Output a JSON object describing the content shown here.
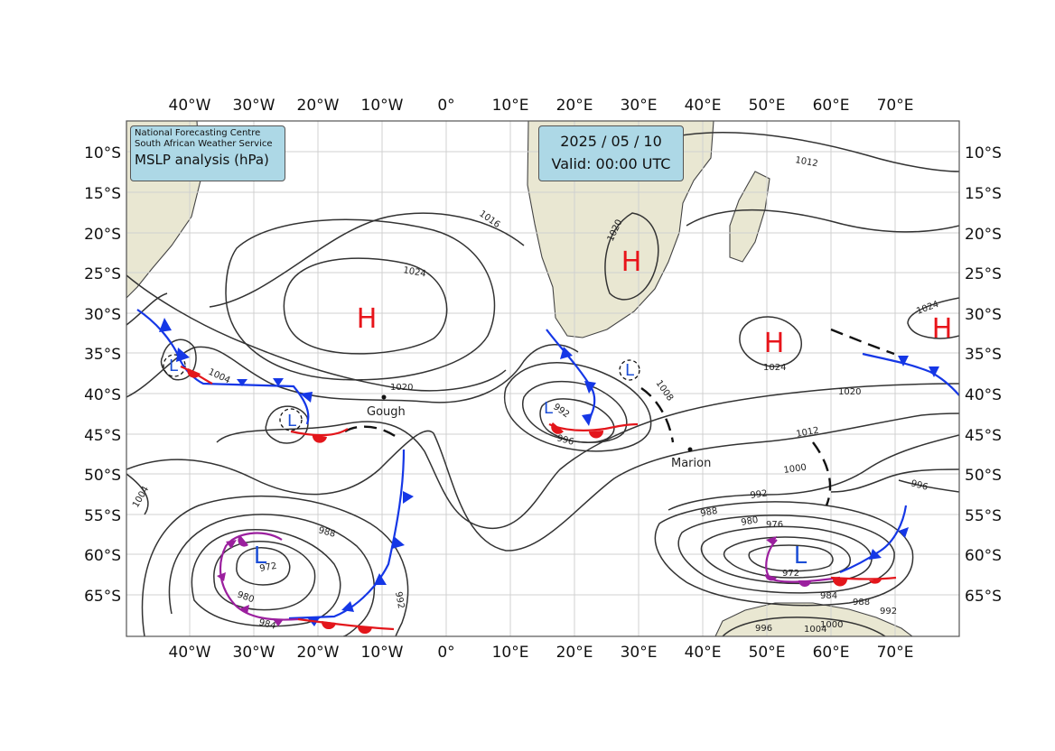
{
  "header": {
    "org_line1": "National Forecasting Centre",
    "org_line2": "South African Weather Service",
    "title": "MSLP analysis (hPa)"
  },
  "valid": {
    "date": "2025 / 05 / 10",
    "time": "Valid: 00:00 UTC"
  },
  "axes": {
    "lon_labels": [
      "40°W",
      "30°W",
      "20°W",
      "10°W",
      "0°",
      "10°E",
      "20°E",
      "30°E",
      "40°E",
      "50°E",
      "60°E",
      "70°E"
    ],
    "lat_labels": [
      "10°S",
      "15°S",
      "20°S",
      "25°S",
      "30°S",
      "35°S",
      "40°S",
      "45°S",
      "50°S",
      "55°S",
      "60°S",
      "65°S"
    ]
  },
  "pressure_centres": {
    "highs": [
      {
        "label": "H",
        "lon": -12.5,
        "lat": -31.5
      },
      {
        "label": "H",
        "lon": 30.5,
        "lat": -24.5
      },
      {
        "label": "H",
        "lon": 52.5,
        "lat": -34.5
      },
      {
        "label": "H",
        "lon": 79,
        "lat": -33
      }
    ],
    "lows": [
      {
        "label": "L",
        "lon": -30.5,
        "lat": -60,
        "size": "large"
      },
      {
        "label": "L",
        "lon": 56,
        "lat": -60,
        "size": "large"
      },
      {
        "label": "L",
        "lon": -42,
        "lat": -37,
        "size": "small"
      },
      {
        "label": "L",
        "lon": -23.5,
        "lat": -43.5,
        "size": "small"
      },
      {
        "label": "L",
        "lon": 16.5,
        "lat": -42,
        "size": "small"
      },
      {
        "label": "L",
        "lon": 28.5,
        "lat": -37.5,
        "size": "small"
      }
    ]
  },
  "isobar_labels": [
    "1012",
    "1016",
    "1020",
    "1024",
    "1024",
    "1024",
    "1004",
    "1020",
    "1008",
    "1020",
    "992",
    "996",
    "1012",
    "1000",
    "996",
    "992",
    "988",
    "980",
    "976",
    "972",
    "984",
    "988",
    "992",
    "996",
    "1004",
    "1000",
    "1004",
    "988",
    "972",
    "980",
    "984",
    "992"
  ],
  "places": [
    {
      "name": "Gough",
      "lon": -9.9,
      "lat": -40.3
    },
    {
      "name": "Marion",
      "lon": 37.8,
      "lat": -46.9
    }
  ],
  "colors": {
    "cold_front": "#1537e6",
    "warm_front": "#e3161b",
    "occluded_front": "#9b1f9e",
    "high": "#e8141a",
    "low": "#1d4fd6",
    "land": "#e9e7d2",
    "panel": "#add8e6"
  }
}
